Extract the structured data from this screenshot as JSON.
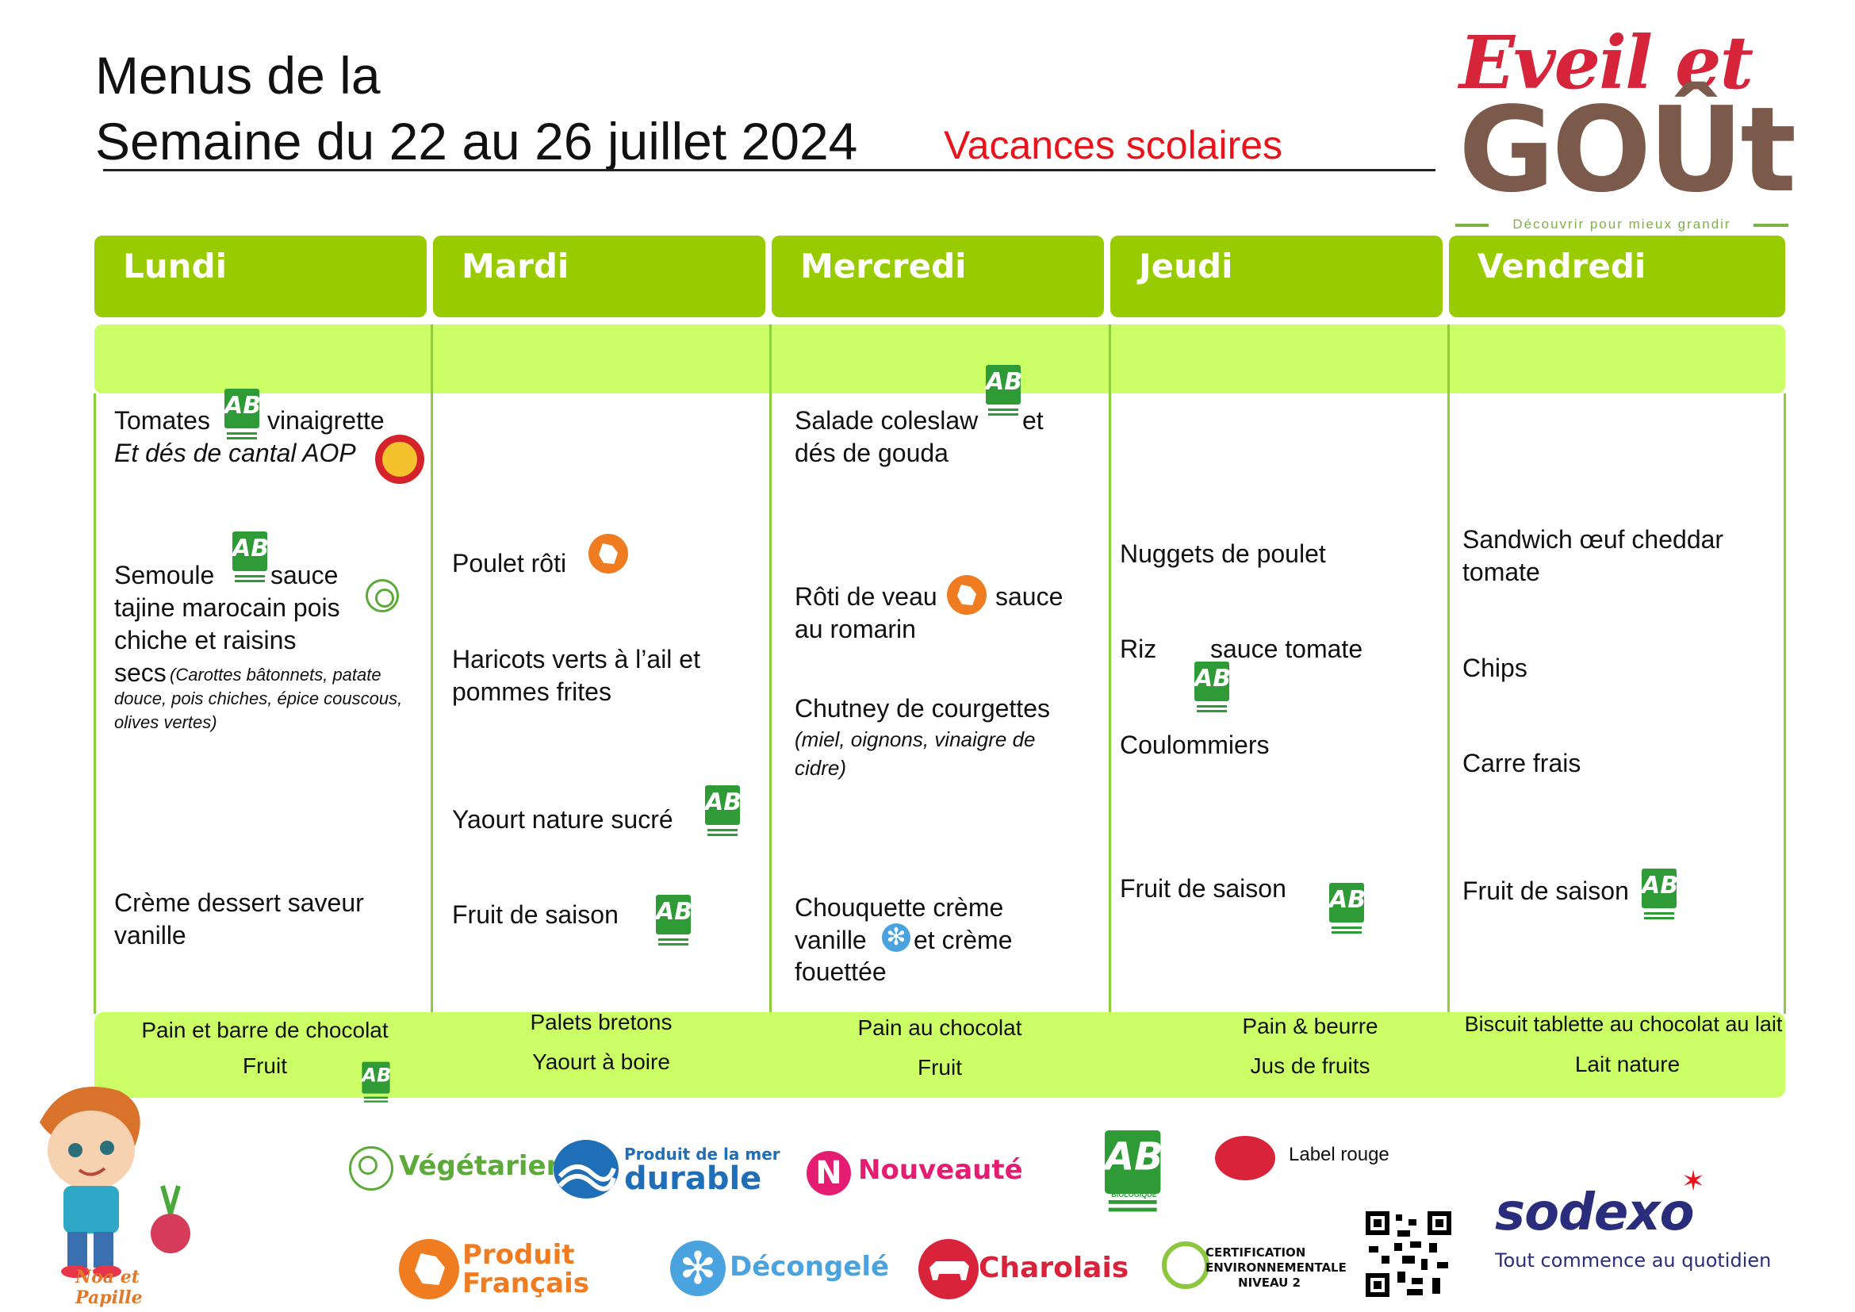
{
  "header": {
    "title_line1": "Menus de la",
    "title_line2": "Semaine du 22 au 26 juillet 2024",
    "subtitle": "Vacances scolaires"
  },
  "logo": {
    "eveil": "Eveil et",
    "gout": "GOÛt",
    "tagline": "Découvrir pour mieux grandir"
  },
  "days": [
    "Lundi",
    "Mardi",
    "Mercredi",
    "Jeudi",
    "Vendredi"
  ],
  "menu": {
    "lundi": {
      "starter_a": "Tomates",
      "starter_b": "vinaigrette",
      "starter_c": "Et dés de cantal AOP",
      "main_a": "Semoule",
      "main_b": "sauce",
      "main_c": "tajine marocain pois",
      "main_d": "chiche et raisins",
      "main_e": "secs",
      "main_detail": "(Carottes bâtonnets, patate douce, pois chiches, épice couscous, olives vertes)",
      "dessert": "Crème dessert saveur vanille"
    },
    "mardi": {
      "main": "Poulet rôti",
      "side": "Haricots verts à l’ail et pommes frites",
      "dairy": "Yaourt nature sucré",
      "dessert": "Fruit de saison"
    },
    "mercredi": {
      "starter_a": "Salade coleslaw",
      "starter_b": "et",
      "starter_c": "dés de gouda",
      "main_a": "Rôti de veau",
      "main_b": "sauce",
      "main_c": "au romarin",
      "side": "Chutney de courgettes",
      "side_detail": "(miel, oignons, vinaigre de cidre)",
      "dessert_a": "Chouquette crème",
      "dessert_b": "vanille",
      "dessert_c": "et crème",
      "dessert_d": "fouettée"
    },
    "jeudi": {
      "main": "Nuggets de poulet",
      "side_a": "Riz",
      "side_b": "sauce tomate",
      "cheese": "Coulommiers",
      "dessert": "Fruit de saison"
    },
    "vendredi": {
      "main": "Sandwich œuf cheddar tomate",
      "side": "Chips",
      "cheese": "Carre frais",
      "dessert": "Fruit de saison"
    }
  },
  "gouter": {
    "lundi": [
      "Pain et barre de chocolat",
      "Fruit"
    ],
    "mardi": [
      "Palets bretons",
      "Yaourt à boire"
    ],
    "mercredi": [
      "Pain au chocolat",
      "Fruit"
    ],
    "jeudi": [
      "Pain & beurre",
      "Jus de fruits"
    ],
    "vendredi": [
      "Biscuit tablette au chocolat au lait",
      "Lait nature"
    ]
  },
  "legend": {
    "vegetarien": "Végétarien",
    "mer_1": "Produit de la mer",
    "mer_2": "durable",
    "nouveaute": "Nouveauté",
    "label_rouge": "Label rouge",
    "produit_1": "Produit",
    "produit_2": "Français",
    "decongele": "Décongelé",
    "charolais": "Charolais",
    "cert_1": "CERTIFICATION",
    "cert_2": "ENVIRONNEMENTALE",
    "cert_3": "NIVEAU 2",
    "ab_1": "AGRICULTURE",
    "ab_2": "BIOLOGIQUE",
    "mascot": "Noa et Papille",
    "sodexo": "sodexo",
    "sodexo_tagline": "Tout commence au quotidien"
  },
  "colors": {
    "day_header": "#99cc00",
    "band": "#ccff66",
    "subtitle": "#e8141b",
    "bio": "#2e9b36",
    "francais": "#f07c22"
  }
}
